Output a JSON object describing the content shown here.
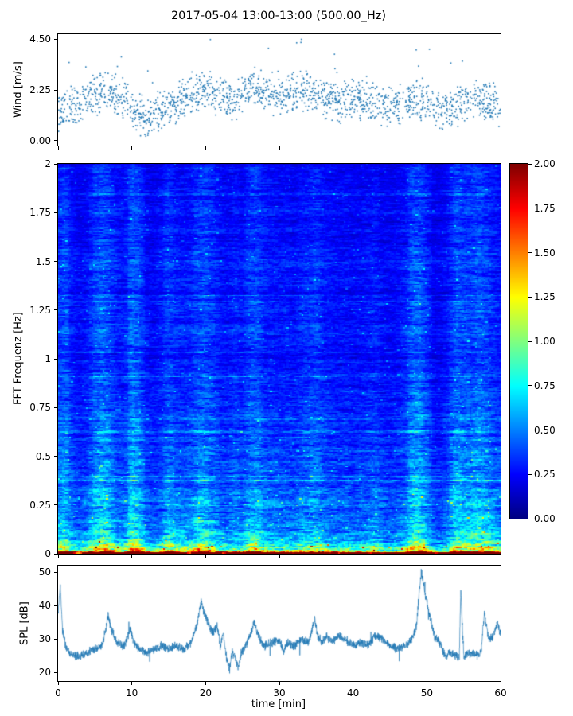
{
  "title": "2017-05-04 13:00-13:00 (500.00_Hz)",
  "chart_data": [
    {
      "type": "scatter",
      "panel": "wind",
      "ylabel": "Wind [m/s]",
      "yticks": [
        0.0,
        2.25,
        4.5
      ],
      "ytick_labels": [
        "0.00",
        "2.25",
        "4.50"
      ],
      "xticks": [
        0,
        10,
        20,
        30,
        40,
        50,
        60
      ],
      "xlim": [
        0,
        60
      ],
      "ylim": [
        0,
        4.5
      ],
      "marker_color": "#1f77b4",
      "n_points": 1750,
      "seed": 42,
      "spread": 0.6,
      "mean_t": [
        0,
        2,
        4,
        6,
        8,
        10,
        12,
        14,
        16,
        18,
        20,
        22,
        24,
        26,
        28,
        30,
        32,
        34,
        36,
        38,
        40,
        42,
        44,
        46,
        48,
        50,
        52,
        54,
        56,
        58,
        60
      ],
      "mean_v": [
        1.1,
        1.5,
        1.9,
        2.2,
        2.0,
        1.5,
        0.9,
        1.4,
        1.6,
        2.1,
        2.2,
        1.9,
        1.8,
        2.4,
        2.2,
        1.9,
        2.2,
        2.3,
        1.9,
        1.6,
        1.9,
        1.7,
        1.5,
        1.6,
        1.9,
        1.8,
        1.4,
        1.5,
        1.9,
        1.7,
        1.5
      ]
    },
    {
      "type": "heatmap",
      "panel": "spectrogram",
      "ylabel": "FFT Frequenz [Hz]",
      "yticks": [
        0,
        0.25,
        0.5,
        0.75,
        1,
        1.25,
        1.5,
        1.75,
        2
      ],
      "ytick_labels": [
        "0",
        "0.25",
        "0.5",
        "0.75",
        "1",
        "1.25",
        "1.5",
        "1.75",
        "2"
      ],
      "xticks": [
        0,
        10,
        20,
        30,
        40,
        50,
        60
      ],
      "xlim": [
        0,
        60
      ],
      "ylim": [
        0,
        2
      ],
      "colormap": "jet",
      "vmin": 0,
      "vmax": 2,
      "colorbar_ticks": [
        0,
        0.25,
        0.5,
        0.75,
        1,
        1.25,
        1.5,
        1.75,
        2
      ],
      "colorbar_tick_labels": [
        "0.00",
        "0.25",
        "0.50",
        "0.75",
        "1.00",
        "1.25",
        "1.50",
        "1.75",
        "2.00"
      ],
      "grid_nx": 240,
      "grid_ny": 280,
      "seed": 7,
      "freq_profile_f": [
        0,
        0.006,
        0.012,
        0.02,
        0.035,
        0.06,
        0.1,
        0.16,
        0.25,
        0.4,
        0.6,
        0.9,
        1.3,
        1.7,
        2.0
      ],
      "freq_profile_v": [
        2.3,
        2.0,
        1.35,
        0.95,
        0.75,
        0.62,
        0.52,
        0.45,
        0.4,
        0.34,
        0.3,
        0.27,
        0.25,
        0.24,
        0.23
      ],
      "column_profile_t": [
        0,
        1,
        2,
        3,
        4,
        5,
        6,
        7,
        8,
        9,
        10,
        11,
        12,
        13,
        14,
        15,
        16,
        17,
        18,
        19,
        20,
        21,
        22,
        23,
        24,
        25,
        26,
        27,
        28,
        29,
        30,
        31,
        32,
        33,
        34,
        35,
        36,
        37,
        38,
        39,
        40,
        41,
        42,
        43,
        44,
        45,
        46,
        47,
        48,
        49,
        50,
        51,
        52,
        53,
        54,
        55,
        56,
        57,
        58,
        59,
        60
      ],
      "column_profile_v": [
        1.2,
        1.35,
        0.95,
        0.85,
        0.95,
        1.3,
        1.45,
        1.3,
        1.0,
        1.0,
        1.5,
        1.35,
        0.9,
        0.85,
        0.95,
        1.25,
        1.05,
        1.0,
        1.05,
        1.3,
        1.3,
        1.15,
        0.95,
        0.9,
        1.05,
        0.95,
        1.2,
        1.3,
        1.05,
        1.0,
        0.95,
        1.0,
        0.9,
        1.05,
        1.1,
        1.2,
        1.0,
        0.95,
        0.9,
        0.95,
        0.85,
        0.9,
        0.95,
        1.05,
        0.9,
        0.85,
        0.9,
        1.0,
        1.4,
        1.45,
        1.15,
        0.8,
        0.8,
        1.0,
        1.4,
        1.3,
        1.25,
        1.4,
        1.3,
        1.1,
        1.0
      ]
    },
    {
      "type": "line",
      "panel": "spl",
      "ylabel": "SPL [dB]",
      "xlabel": "time [min]",
      "yticks": [
        20,
        30,
        40,
        50
      ],
      "ytick_labels": [
        "20",
        "30",
        "40",
        "50"
      ],
      "xticks": [
        0,
        10,
        20,
        30,
        40,
        50,
        60
      ],
      "xtick_labels": [
        "0",
        "10",
        "20",
        "30",
        "40",
        "50",
        "60"
      ],
      "xlim": [
        0,
        60
      ],
      "line_color": "#1f77b4",
      "noise": 1.1,
      "seed": 99,
      "keypoints_t": [
        0,
        0.3,
        0.6,
        1,
        1.5,
        2,
        3,
        4,
        5,
        6,
        6.8,
        7.2,
        8,
        9,
        9.8,
        10.3,
        11,
        12,
        13,
        14,
        15,
        16,
        17,
        18,
        18.8,
        19.4,
        20,
        20.6,
        21,
        21.6,
        22,
        22.4,
        22.8,
        23.2,
        23.6,
        24,
        24.4,
        24.8,
        25.4,
        26,
        26.6,
        27,
        27.6,
        28,
        29,
        30,
        30.6,
        31,
        32,
        33,
        34,
        34.8,
        35.2,
        35.8,
        36.4,
        37,
        38,
        39,
        40,
        41,
        42,
        43,
        44,
        45,
        46,
        47,
        48,
        48.6,
        49,
        49.3,
        49.8,
        50.4,
        51,
        52,
        52.6,
        53,
        54,
        54.4,
        54.6,
        55,
        56,
        57,
        57.4,
        57.8,
        58.4,
        59,
        59.6,
        60
      ],
      "keypoints_v": [
        38,
        46,
        33,
        28,
        26,
        25,
        25,
        26,
        27,
        28,
        37,
        33,
        29,
        28,
        33,
        29,
        27,
        26,
        27,
        28,
        27,
        28,
        27,
        29,
        34,
        41,
        37,
        33,
        32,
        34,
        28,
        32,
        25,
        21,
        26,
        25,
        21,
        26,
        28,
        31,
        35,
        32,
        29,
        28,
        29,
        30,
        26,
        29,
        28,
        30,
        29,
        36,
        31,
        29,
        31,
        29,
        31,
        30,
        28,
        29,
        28,
        31,
        30,
        28,
        27,
        28,
        30,
        34,
        45,
        50,
        43,
        37,
        31,
        28,
        24,
        26,
        25,
        24,
        45,
        25,
        26,
        25,
        27,
        38,
        30,
        31,
        35,
        31
      ]
    }
  ]
}
